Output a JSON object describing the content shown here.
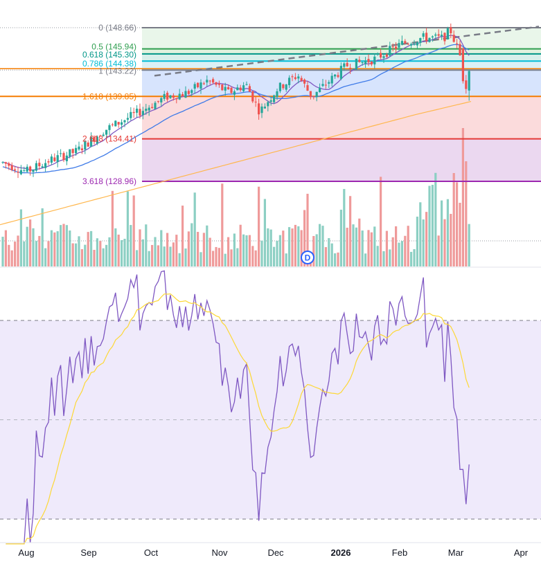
{
  "chart_data": {
    "type": "candlestick",
    "price_axis": {
      "min": 123.0,
      "max": 150.0
    },
    "fibonacci": {
      "anchor_start_month": "Oct",
      "levels": [
        {
          "label": "0 (148.66)",
          "value": 148.66,
          "color": "#787b86",
          "zone_color": "#e8f5e9"
        },
        {
          "label": "0.5 (145.94)",
          "value": 145.94,
          "color": "#2e9e4f",
          "zone_color": "#dff0dc"
        },
        {
          "label": "0.618 (145.30)",
          "value": 145.3,
          "color": "#009688",
          "zone_color": "#d6eeea"
        },
        {
          "label": "0.786 (144.38)",
          "value": 144.38,
          "color": "#00bcd4",
          "zone_color": "#d9f0f5"
        },
        {
          "label": "1 (143.22)",
          "value": 143.22,
          "color": "#787b86",
          "zone_color": "#d5e3fd"
        },
        {
          "label": "1.618 (139.85)",
          "value": 139.85,
          "color": "#f57c00",
          "zone_color": "#fbd9da"
        },
        {
          "label": "2.618 (134.41)",
          "value": 134.41,
          "color": "#e53935",
          "zone_color": "#ead6ef"
        },
        {
          "label": "3.618 (128.96)",
          "value": 128.96,
          "color": "#9c27b0",
          "zone_color": null
        }
      ]
    },
    "horizontal_line": {
      "value": 143.4,
      "color": "#f57c00"
    },
    "trendline": {
      "start": {
        "month": "Sep",
        "value": 142.5
      },
      "end": {
        "month": "Apr",
        "value": 148.8
      },
      "color": "#787b86"
    },
    "candles": [],
    "moving_averages": [
      {
        "color": "#7e57c2"
      },
      {
        "color": "#3f7be8"
      },
      {
        "color": "#ffb74d"
      }
    ],
    "volume": {
      "up_color": "#8ccfc3",
      "down_color": "#ef9a9a"
    },
    "dividend_marker": {
      "label": "D",
      "month": "Dec"
    },
    "rsi": {
      "range": [
        0,
        100
      ],
      "upper_band": 70,
      "middle": 50,
      "lower_band": 30,
      "line_color": "#7e57c2",
      "ma_color": "#fdd835",
      "band_fill": "#efeafb"
    },
    "x_axis": {
      "labels": [
        {
          "text": "Aug",
          "bold": false
        },
        {
          "text": "Sep",
          "bold": false
        },
        {
          "text": "Oct",
          "bold": false
        },
        {
          "text": "Nov",
          "bold": false
        },
        {
          "text": "Dec",
          "bold": false
        },
        {
          "text": "2026",
          "bold": true
        },
        {
          "text": "Feb",
          "bold": false
        },
        {
          "text": "Mar",
          "bold": false
        },
        {
          "text": "Apr",
          "bold": false
        }
      ]
    },
    "colors": {
      "up": "#26a69a",
      "down": "#ef5350"
    }
  }
}
